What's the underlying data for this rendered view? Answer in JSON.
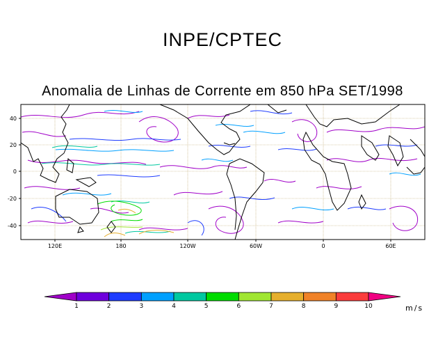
{
  "header": {
    "institution": "INPE/CPTEC",
    "title": "Anomalia de Linhas de Corrente em 850 hPa SET/1998"
  },
  "map": {
    "lat_ticks": [
      "40",
      "20",
      "0",
      "-20",
      "-40"
    ],
    "lon_ticks": [
      "120E",
      "180",
      "120W",
      "60W",
      "0",
      "60E"
    ],
    "coastline_color": "#000000",
    "grid_color": "#b8a060"
  },
  "colorbar": {
    "ticks": [
      "1",
      "2",
      "3",
      "4",
      "5",
      "6",
      "7",
      "8",
      "9",
      "10"
    ],
    "unit": "m/s",
    "colors": [
      "#a000c8",
      "#6e00dc",
      "#1e3cff",
      "#00a0ff",
      "#00c8a0",
      "#00dc00",
      "#a0e632",
      "#e6af2d",
      "#f08228",
      "#fa3c3c",
      "#f00082"
    ]
  }
}
